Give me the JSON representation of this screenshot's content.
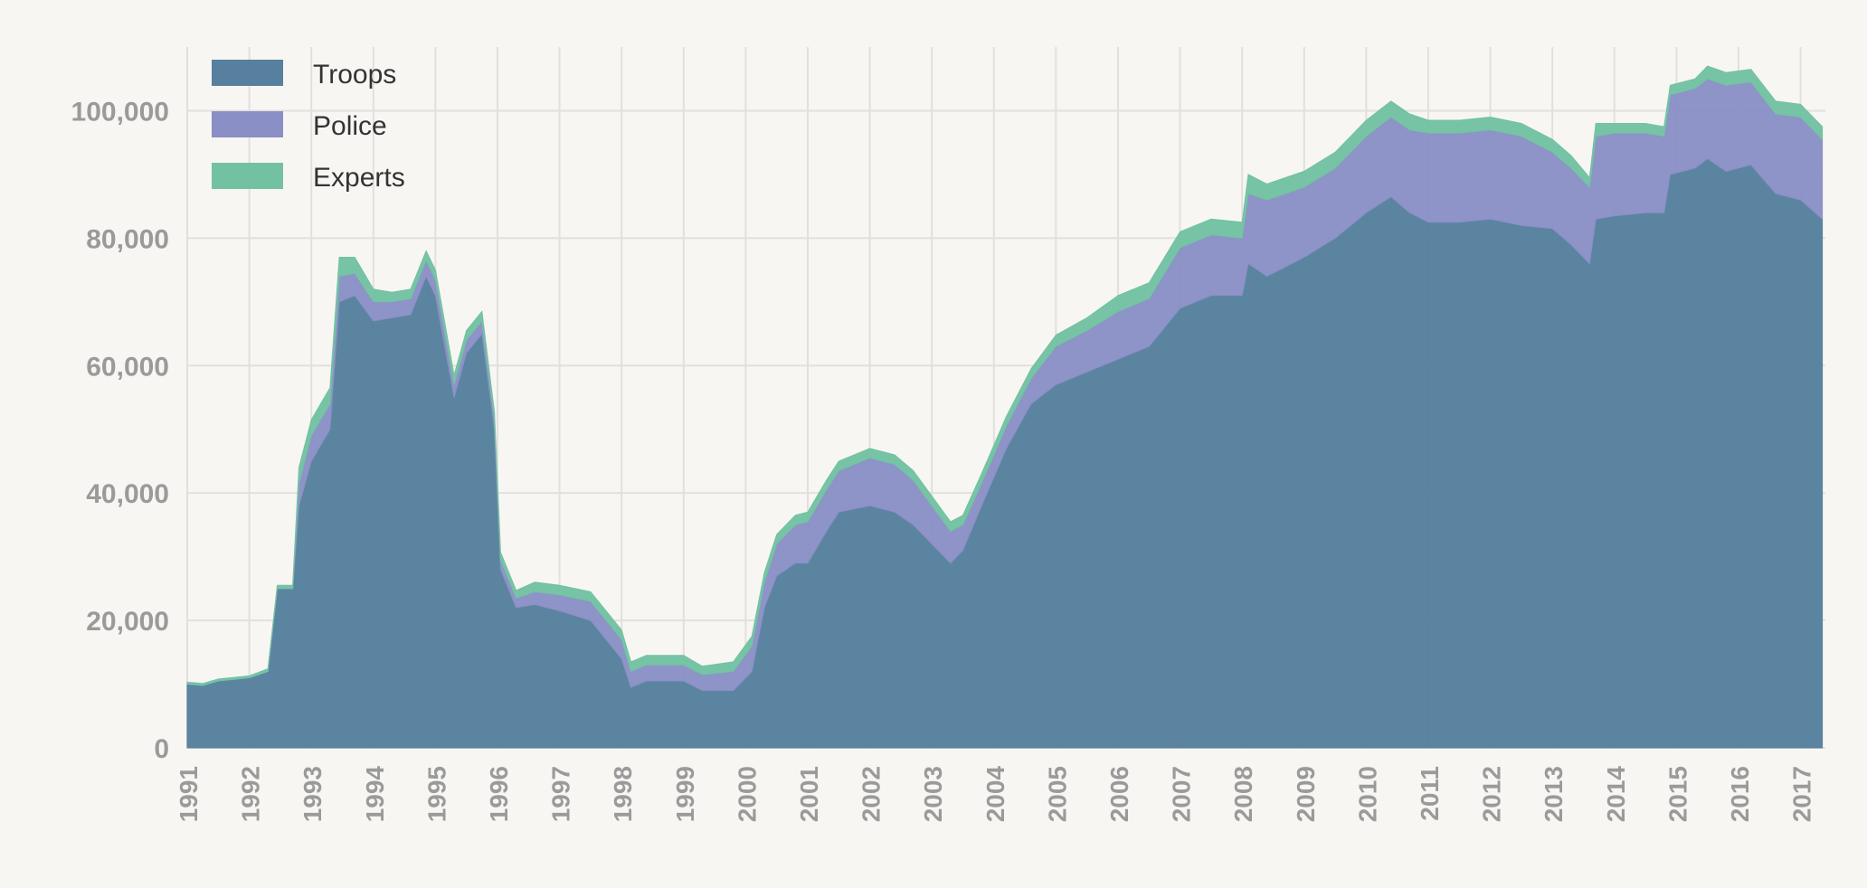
{
  "chart_data": {
    "type": "stacked_area",
    "x": [
      1991.0,
      1991.25,
      1991.5,
      1992.0,
      1992.3,
      1992.45,
      1992.7,
      1992.8,
      1993.0,
      1993.3,
      1993.45,
      1993.7,
      1994.0,
      1994.3,
      1994.6,
      1994.85,
      1995.0,
      1995.3,
      1995.5,
      1995.75,
      1995.95,
      1996.05,
      1996.3,
      1996.6,
      1997.0,
      1997.5,
      1998.0,
      1998.15,
      1998.4,
      1999.0,
      1999.3,
      1999.8,
      2000.1,
      2000.3,
      2000.5,
      2000.8,
      2001.0,
      2001.3,
      2001.5,
      2002.0,
      2002.4,
      2002.7,
      2003.0,
      2003.3,
      2003.5,
      2003.8,
      2004.2,
      2004.6,
      2005.0,
      2005.5,
      2006.0,
      2006.5,
      2007.0,
      2007.5,
      2008.0,
      2008.1,
      2008.4,
      2009.0,
      2009.5,
      2010.0,
      2010.4,
      2010.7,
      2011.0,
      2011.5,
      2012.0,
      2012.5,
      2013.0,
      2013.3,
      2013.6,
      2013.7,
      2014.0,
      2014.5,
      2014.8,
      2014.9,
      2015.3,
      2015.5,
      2015.8,
      2016.2,
      2016.6,
      2017.0,
      2017.35
    ],
    "series": [
      {
        "name": "Troops",
        "color": "#56809e",
        "values": [
          10000,
          9800,
          10500,
          11000,
          12000,
          25000,
          25000,
          38000,
          45000,
          50000,
          70000,
          71000,
          67000,
          67500,
          68000,
          74000,
          71000,
          55000,
          62000,
          65000,
          50000,
          28000,
          22000,
          22500,
          21500,
          20000,
          14000,
          9500,
          10500,
          10500,
          9000,
          9000,
          12000,
          22000,
          27000,
          29000,
          29000,
          34000,
          37000,
          38000,
          37000,
          35000,
          32000,
          29000,
          31000,
          38000,
          47000,
          54000,
          57000,
          59000,
          61000,
          63000,
          69000,
          71000,
          71000,
          76000,
          74000,
          77000,
          80000,
          84000,
          86500,
          84000,
          82500,
          82500,
          83000,
          82000,
          81500,
          79000,
          76000,
          83000,
          83500,
          84000,
          84000,
          90000,
          91000,
          92500,
          90500,
          91500,
          87000,
          86000,
          83000
        ]
      },
      {
        "name": "Police",
        "color": "#8a8fc6",
        "values": [
          0,
          0,
          0,
          0,
          0,
          0,
          0,
          3500,
          4000,
          4000,
          4000,
          3500,
          3000,
          2500,
          2500,
          2500,
          2500,
          2000,
          2000,
          2000,
          1500,
          1500,
          1500,
          2000,
          2500,
          3000,
          3000,
          2500,
          2500,
          2500,
          2500,
          3000,
          4000,
          4000,
          5000,
          6000,
          6500,
          6500,
          6500,
          7500,
          7500,
          7000,
          6000,
          5000,
          4000,
          3500,
          3500,
          4000,
          6000,
          6500,
          7500,
          7500,
          9500,
          9500,
          9000,
          11000,
          12000,
          11000,
          11000,
          12000,
          12500,
          13000,
          14000,
          14000,
          14000,
          14000,
          12000,
          12000,
          12000,
          13000,
          13000,
          12500,
          12000,
          12500,
          12500,
          12500,
          13500,
          13000,
          12500,
          13000,
          12500
        ]
      },
      {
        "name": "Experts",
        "color": "#72c2a2",
        "values": [
          300,
          300,
          300,
          300,
          400,
          500,
          500,
          2500,
          2500,
          2500,
          3000,
          2500,
          2000,
          1500,
          1500,
          1500,
          1500,
          1500,
          1500,
          1500,
          1200,
          1200,
          1200,
          1500,
          1500,
          1500,
          1500,
          1500,
          1500,
          1500,
          1300,
          1500,
          1500,
          1500,
          1500,
          1500,
          1500,
          1500,
          1500,
          1500,
          1500,
          1500,
          1500,
          1500,
          1500,
          1500,
          1500,
          1500,
          1800,
          2000,
          2500,
          2500,
          2500,
          2500,
          2500,
          3000,
          2500,
          2500,
          2500,
          2500,
          2500,
          2500,
          2000,
          2000,
          2000,
          2000,
          2000,
          2000,
          1500,
          2000,
          1500,
          1500,
          1500,
          1500,
          1500,
          2000,
          2000,
          2000,
          2000,
          2000,
          2000
        ]
      }
    ],
    "xlim": [
      1991,
      2017.4
    ],
    "xticks": [
      1991,
      1992,
      1993,
      1994,
      1995,
      1996,
      1997,
      1998,
      1999,
      2000,
      2001,
      2002,
      2003,
      2004,
      2005,
      2006,
      2007,
      2008,
      2009,
      2010,
      2011,
      2012,
      2013,
      2014,
      2015,
      2016,
      2017
    ],
    "ylim": [
      0,
      110000
    ],
    "yticks": [
      0,
      {
        "value": 20000,
        "label": "20,000"
      },
      {
        "value": 40000,
        "label": "40,000"
      },
      {
        "value": 60000,
        "label": "60,000"
      },
      {
        "value": 80000,
        "label": "80,000"
      },
      {
        "value": 100000,
        "label": "100,000"
      }
    ],
    "grid": true,
    "legend": "upper left"
  }
}
